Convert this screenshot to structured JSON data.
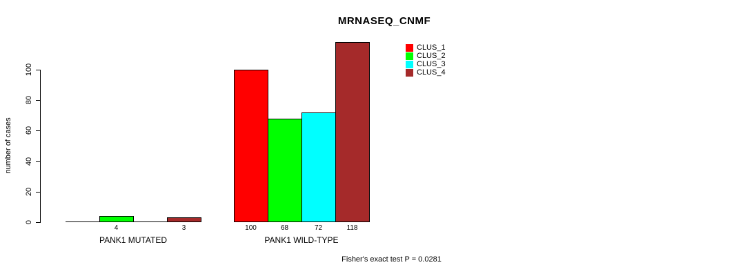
{
  "chart_data": {
    "type": "bar",
    "title": "MRNASEQ_CNMF",
    "ylabel": "number of cases",
    "xlabel": "",
    "ylim": [
      0,
      100
    ],
    "y_ticks": [
      0,
      20,
      40,
      60,
      80,
      100
    ],
    "grid": false,
    "legend_position": "top-right",
    "groups": [
      "PANK1 MUTATED",
      "PANK1 WILD-TYPE"
    ],
    "series": [
      {
        "name": "CLUS_1",
        "color": "#FF0000",
        "values": [
          0,
          100
        ]
      },
      {
        "name": "CLUS_2",
        "color": "#00FF00",
        "values": [
          4,
          68
        ]
      },
      {
        "name": "CLUS_3",
        "color": "#00FFFF",
        "values": [
          0,
          72
        ]
      },
      {
        "name": "CLUS_4",
        "color": "#A52A2A",
        "values": [
          3,
          118
        ]
      }
    ],
    "bar_value_labels": [
      [
        "",
        "4",
        "",
        "3"
      ],
      [
        "100",
        "68",
        "72",
        "118"
      ]
    ],
    "annotation": "Fisher's exact test P = 0.0281"
  },
  "colors": {
    "axis": "#000000",
    "text": "#000000",
    "background": "#FFFFFF"
  }
}
